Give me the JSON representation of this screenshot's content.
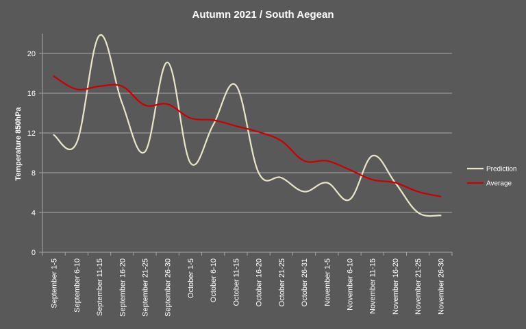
{
  "chart_data": {
    "type": "line",
    "title": "Autumn 2021 / South Aegean",
    "xlabel": "",
    "ylabel": "Temperature 850hPa",
    "ylim": [
      0,
      22
    ],
    "yticks": [
      0,
      4,
      8,
      12,
      16,
      20
    ],
    "grid": true,
    "legend_position": "right",
    "categories": [
      "September 1-5",
      "September 6-10",
      "September 11-15",
      "September 16-20",
      "September 21-25",
      "September 26-30",
      "October 1-5",
      "October 6-10",
      "October 11-15",
      "October 16-20",
      "October 21-25",
      "October 26-31",
      "November 1-5",
      "November 6-10",
      "November 11-15",
      "November 16-20",
      "November 21-25",
      "November 26-30"
    ],
    "series": [
      {
        "name": "Prediction",
        "color": "#e8e4c4",
        "values": [
          11.8,
          11.0,
          21.8,
          15.0,
          10.1,
          19.1,
          9.0,
          12.8,
          16.8,
          8.0,
          7.5,
          6.1,
          7.0,
          5.3,
          9.7,
          7.0,
          4.0,
          3.7
        ]
      },
      {
        "name": "Average",
        "color": "#cc0000",
        "values": [
          17.7,
          16.4,
          16.7,
          16.7,
          14.8,
          14.9,
          13.5,
          13.3,
          12.7,
          12.1,
          11.2,
          9.2,
          9.2,
          8.3,
          7.3,
          7.0,
          6.1,
          5.6
        ]
      }
    ]
  }
}
